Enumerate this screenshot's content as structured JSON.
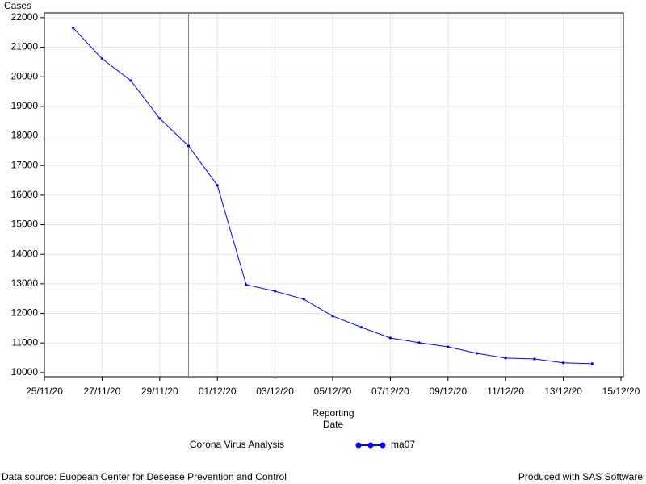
{
  "chart_data": {
    "type": "line",
    "y_label": "Cases",
    "x_label": "Reporting Date",
    "legend_title": "Corona Virus Analysis",
    "footnote_left": "Data source: Euopean Center for Desease Prevention and Control",
    "footnote_right": "Produced with SAS Software",
    "x": [
      "26/11/20",
      "27/11/20",
      "28/11/20",
      "29/11/20",
      "30/11/20",
      "01/12/20",
      "02/12/20",
      "03/12/20",
      "04/12/20",
      "05/12/20",
      "06/12/20",
      "07/12/20",
      "08/12/20",
      "09/12/20",
      "10/12/20",
      "11/12/20",
      "12/12/20",
      "13/12/20",
      "14/12/20"
    ],
    "series": [
      {
        "name": "ma07",
        "color": "#0000ff",
        "values": [
          21650,
          20610,
          19870,
          18590,
          17660,
          16330,
          12970,
          12750,
          12480,
          11910,
          11530,
          11170,
          11010,
          10870,
          10650,
          10490,
          10460,
          10330,
          10300
        ]
      }
    ],
    "xlim": [
      "25/11/20",
      "15/12/20"
    ],
    "xticks": [
      "25/11/20",
      "27/11/20",
      "29/11/20",
      "01/12/20",
      "03/12/20",
      "05/12/20",
      "07/12/20",
      "09/12/20",
      "11/12/20",
      "13/12/20",
      "15/12/20"
    ],
    "ylim": [
      9860,
      22160
    ],
    "yticks": [
      10000,
      11000,
      12000,
      13000,
      14000,
      15000,
      16000,
      17000,
      18000,
      19000,
      20000,
      21000,
      22000
    ],
    "reference_line_x": "30/11/20",
    "grid": true
  }
}
